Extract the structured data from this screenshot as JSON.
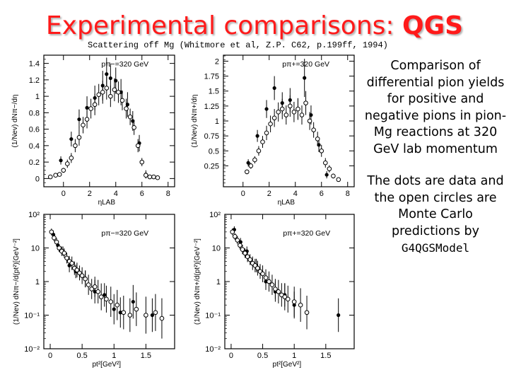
{
  "slide": {
    "title_main": "Experimental comparisons: ",
    "title_bold": "QGS",
    "subtitle": "Scattering off Mg (Whitmore et al, Z.P. C62, p.199ff, 1994)",
    "caption_1": "Comparison of differential pion yields for positive and negative pions in pion-Mg reactions at 320 GeV lab momentum",
    "caption_2": "The dots are data and the open circles are Monte Carlo predictions by",
    "caption_code": "G4QGSModel"
  },
  "colors": {
    "title": "#ff1a1a",
    "ink": "#000000"
  },
  "chart_data": [
    {
      "id": "eta-pi-minus",
      "type": "scatter",
      "annotation": "pπ−=320 GeV",
      "xlabel": "ηLAB",
      "ylabel": "(1/Nev) dNπ−/dη",
      "xlim": [
        -1.5,
        8.5
      ],
      "ylim": [
        -0.1,
        1.5
      ],
      "xticks": [
        0,
        2,
        4,
        6,
        8
      ],
      "yticks": [
        0,
        0.2,
        0.4,
        0.6,
        0.8,
        1,
        1.2,
        1.4
      ],
      "ytick_labels": [
        "0",
        "0.2",
        "0.4",
        "0.6",
        "0.8",
        "1",
        "1.2",
        "1.4"
      ],
      "series": [
        {
          "name": "data",
          "marker": "filled",
          "x": [
            -0.2,
            0.6,
            1.2,
            1.8,
            2.4,
            3.0,
            3.3,
            3.6,
            4.0,
            4.4,
            4.9,
            5.3,
            5.8,
            6.3
          ],
          "y": [
            0.22,
            0.48,
            0.72,
            0.86,
            0.98,
            1.13,
            1.27,
            1.22,
            1.19,
            1.05,
            0.9,
            0.7,
            0.43,
            0.05
          ],
          "err": [
            0.05,
            0.09,
            0.12,
            0.14,
            0.15,
            0.18,
            0.2,
            0.18,
            0.16,
            0.16,
            0.15,
            0.12,
            0.1,
            0.05
          ]
        },
        {
          "name": "Monte Carlo",
          "marker": "open",
          "x": [
            -1.0,
            -0.6,
            -0.3,
            0.0,
            0.3,
            0.6,
            0.9,
            1.2,
            1.5,
            1.8,
            2.1,
            2.4,
            2.7,
            3.0,
            3.3,
            3.6,
            3.9,
            4.2,
            4.5,
            4.8,
            5.1,
            5.4,
            5.7,
            6.0,
            6.3,
            6.6,
            6.9,
            7.2
          ],
          "y": [
            0.02,
            0.04,
            0.05,
            0.1,
            0.18,
            0.25,
            0.4,
            0.5,
            0.65,
            0.72,
            0.85,
            0.9,
            1.02,
            1.05,
            1.1,
            1.0,
            1.08,
            1.05,
            0.95,
            0.85,
            0.75,
            0.62,
            0.4,
            0.2,
            0.04,
            0.02,
            0.02,
            0.01
          ],
          "err": [
            0,
            0,
            0,
            0.03,
            0.05,
            0.06,
            0.08,
            0.1,
            0.1,
            0.11,
            0.12,
            0.13,
            0.13,
            0.14,
            0.14,
            0.13,
            0.14,
            0.13,
            0.12,
            0.12,
            0.1,
            0.09,
            0.08,
            0.05,
            0,
            0,
            0,
            0
          ]
        }
      ]
    },
    {
      "id": "eta-pi-plus",
      "type": "scatter",
      "annotation": "pπ+=320 GeV",
      "xlabel": "ηLAB",
      "ylabel": "(1/Nev) dNπ+/dη",
      "xlim": [
        -1.5,
        8.5
      ],
      "ylim": [
        -0.1,
        2.1
      ],
      "xticks": [
        0,
        2,
        4,
        6,
        8
      ],
      "yticks": [
        0.25,
        0.5,
        0.75,
        1,
        1.25,
        1.5,
        1.75,
        2
      ],
      "ytick_labels": [
        "0.25",
        "0.5",
        "0.75",
        "1",
        "1.25",
        "1.5",
        "1.75",
        "2"
      ],
      "series": [
        {
          "name": "data",
          "marker": "filled",
          "x": [
            0.4,
            1.1,
            1.8,
            2.4,
            3.0,
            3.6,
            4.2,
            4.7,
            5.2,
            5.8,
            6.4
          ],
          "y": [
            0.3,
            0.75,
            1.2,
            1.55,
            1.3,
            1.35,
            1.2,
            1.72,
            1.1,
            0.6,
            0.1
          ],
          "err": [
            0.06,
            0.1,
            0.15,
            0.2,
            0.18,
            0.2,
            0.18,
            0.32,
            0.16,
            0.12,
            0.06
          ]
        },
        {
          "name": "Monte Carlo",
          "marker": "open",
          "x": [
            0.3,
            0.6,
            0.9,
            1.2,
            1.5,
            1.8,
            2.1,
            2.4,
            2.7,
            3.0,
            3.3,
            3.6,
            3.9,
            4.2,
            4.5,
            4.8,
            5.1,
            5.4,
            5.7,
            6.0,
            6.3,
            6.6,
            6.9,
            7.3
          ],
          "y": [
            0.15,
            0.25,
            0.35,
            0.5,
            0.65,
            0.8,
            0.95,
            1.05,
            1.15,
            1.2,
            1.1,
            1.25,
            1.15,
            1.2,
            1.1,
            1.3,
            1.0,
            0.85,
            0.7,
            0.5,
            0.3,
            0.2,
            0.08,
            0.02
          ],
          "err": [
            0.04,
            0.05,
            0.06,
            0.08,
            0.1,
            0.12,
            0.14,
            0.15,
            0.16,
            0.17,
            0.16,
            0.18,
            0.17,
            0.18,
            0.16,
            0.2,
            0.15,
            0.13,
            0.12,
            0.1,
            0.08,
            0.06,
            0.04,
            0
          ]
        }
      ]
    },
    {
      "id": "pt2-pi-minus",
      "type": "scatter",
      "annotation": "pπ−=320 GeV",
      "xlabel": "pt²[GeV²]",
      "ylabel": "(1/Nev) dNπ−/d(pt²)[GeV⁻²]",
      "yscale": "log",
      "xlim": [
        -0.1,
        1.95
      ],
      "ylim": [
        0.01,
        100
      ],
      "xticks": [
        0,
        0.5,
        1,
        1.5
      ],
      "yticks": [
        0.01,
        0.1,
        1,
        10,
        100
      ],
      "ytick_labels": [
        "10⁻²",
        "10⁻¹",
        "1",
        "10",
        "10²"
      ],
      "series": [
        {
          "name": "data",
          "marker": "filled",
          "x": [
            0.05,
            0.12,
            0.2,
            0.3,
            0.4,
            0.55,
            0.7,
            0.85,
            1.0,
            1.1,
            1.3,
            1.6
          ],
          "y": [
            25,
            12,
            8,
            3,
            2,
            1.2,
            0.5,
            0.4,
            0.15,
            0.12,
            0.25,
            0.1
          ],
          "err": [
            0.12,
            0.14,
            0.14,
            0.2,
            0.2,
            0.25,
            0.35,
            0.35,
            0.45,
            0.45,
            0.5,
            0.5
          ]
        },
        {
          "name": "Monte Carlo",
          "marker": "open",
          "x": [
            0.02,
            0.06,
            0.1,
            0.14,
            0.18,
            0.22,
            0.26,
            0.3,
            0.34,
            0.38,
            0.42,
            0.46,
            0.5,
            0.55,
            0.6,
            0.65,
            0.7,
            0.75,
            0.8,
            0.88,
            0.95,
            1.05,
            1.15,
            1.25,
            1.35,
            1.5,
            1.65,
            1.75
          ],
          "y": [
            30,
            20,
            15,
            10,
            8,
            7,
            5,
            4,
            3.5,
            2.5,
            2.2,
            1.8,
            1.5,
            1.2,
            0.8,
            0.6,
            0.7,
            0.5,
            0.35,
            0.3,
            0.25,
            0.2,
            0.12,
            0.1,
            0.15,
            0.1,
            0.12,
            0.08
          ],
          "err": [
            0.1,
            0.1,
            0.12,
            0.12,
            0.14,
            0.14,
            0.16,
            0.16,
            0.2,
            0.2,
            0.22,
            0.22,
            0.25,
            0.25,
            0.3,
            0.3,
            0.3,
            0.35,
            0.4,
            0.4,
            0.45,
            0.45,
            0.5,
            0.5,
            0.5,
            0.55,
            0.55,
            0.6
          ]
        }
      ]
    },
    {
      "id": "pt2-pi-plus",
      "type": "scatter",
      "annotation": "pπ+=320 GeV",
      "xlabel": "pt²[GeV²]",
      "ylabel": "(1/Nev) dNπ+/d(pt²)[GeV⁻²]",
      "yscale": "log",
      "xlim": [
        -0.1,
        1.95
      ],
      "ylim": [
        0.01,
        100
      ],
      "xticks": [
        0,
        0.5,
        1,
        1.5
      ],
      "yticks": [
        0.01,
        0.1,
        1,
        10,
        100
      ],
      "ytick_labels": [
        "10⁻²",
        "10⁻¹",
        "1",
        "10",
        "10²"
      ],
      "series": [
        {
          "name": "data",
          "marker": "filled",
          "x": [
            0.05,
            0.15,
            0.25,
            0.4,
            0.55,
            0.7,
            0.85,
            1.0,
            1.7
          ],
          "y": [
            35,
            15,
            8,
            3,
            1.0,
            0.5,
            0.4,
            0.2,
            0.1
          ],
          "err": [
            0.1,
            0.12,
            0.14,
            0.2,
            0.25,
            0.3,
            0.35,
            0.4,
            0.5
          ]
        },
        {
          "name": "Monte Carlo",
          "marker": "open",
          "x": [
            0.02,
            0.06,
            0.1,
            0.14,
            0.18,
            0.22,
            0.26,
            0.3,
            0.34,
            0.38,
            0.42,
            0.46,
            0.5,
            0.55,
            0.6,
            0.65,
            0.7,
            0.75,
            0.8,
            0.85,
            0.9,
            1.0,
            1.1,
            1.2
          ],
          "y": [
            30,
            22,
            17,
            12,
            9,
            7,
            5.5,
            4.5,
            3.5,
            3,
            2.5,
            2,
            1.7,
            1.3,
            1.0,
            0.8,
            0.6,
            0.5,
            0.4,
            0.35,
            0.3,
            0.25,
            0.2,
            0.12
          ],
          "err": [
            0.1,
            0.1,
            0.12,
            0.12,
            0.14,
            0.14,
            0.16,
            0.16,
            0.2,
            0.2,
            0.22,
            0.22,
            0.25,
            0.25,
            0.3,
            0.3,
            0.3,
            0.35,
            0.35,
            0.4,
            0.4,
            0.45,
            0.5,
            0.5
          ]
        }
      ]
    }
  ]
}
